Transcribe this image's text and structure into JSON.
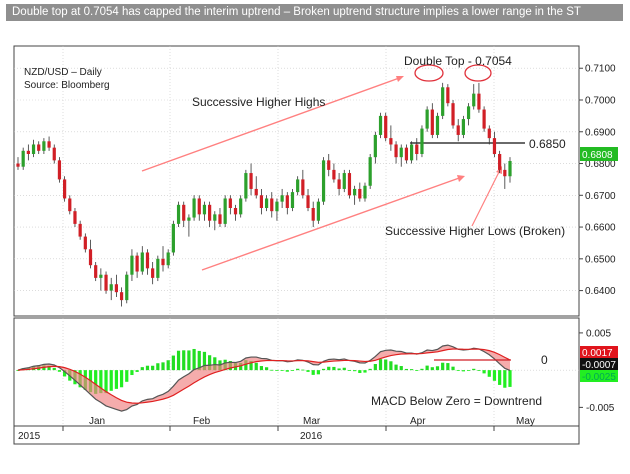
{
  "title": "Double top at 0.7054 has capped the interim uptrend – Broken uptrend structure implies a lower range in the ST",
  "legend": {
    "instrument": "NZD/USD – Daily",
    "source": "Source: Bloomberg"
  },
  "colors": {
    "up": "#2ca02c",
    "down": "#d11f26",
    "trendline": "#ff8080",
    "macd_line": "#555555",
    "signal_line": "#e02020",
    "hist_pos": "#22dd22",
    "hist_neg": "#22ee22",
    "fill": "#f08080",
    "price_tag": "#22bb22",
    "macd_tag": "#e0141c",
    "signal_tag": "#111111"
  },
  "chart_data": [
    {
      "type": "candlestick",
      "title": "",
      "y_ticks": [
        "0.6400",
        "0.6500",
        "0.6600",
        "0.6700",
        "0.6800",
        "0.6900",
        "0.7000",
        "0.7100"
      ],
      "ylim": [
        0.632,
        0.717
      ],
      "x_labels": [
        "Jan",
        "Feb",
        "Mar",
        "Apr",
        "May"
      ],
      "year_labels": [
        "2015",
        "2016"
      ],
      "last_price": "0.6808",
      "candles": [
        [
          0.68,
          0.682,
          0.678,
          0.679
        ],
        [
          0.679,
          0.685,
          0.678,
          0.684
        ],
        [
          0.684,
          0.686,
          0.681,
          0.683
        ],
        [
          0.683,
          0.6875,
          0.682,
          0.686
        ],
        [
          0.686,
          0.687,
          0.683,
          0.684
        ],
        [
          0.684,
          0.688,
          0.683,
          0.687
        ],
        [
          0.687,
          0.6885,
          0.684,
          0.685
        ],
        [
          0.685,
          0.686,
          0.68,
          0.681
        ],
        [
          0.681,
          0.682,
          0.674,
          0.675
        ],
        [
          0.675,
          0.676,
          0.668,
          0.669
        ],
        [
          0.669,
          0.67,
          0.664,
          0.665
        ],
        [
          0.665,
          0.666,
          0.66,
          0.661
        ],
        [
          0.661,
          0.662,
          0.656,
          0.657
        ],
        [
          0.657,
          0.658,
          0.652,
          0.653
        ],
        [
          0.653,
          0.656,
          0.647,
          0.648
        ],
        [
          0.648,
          0.649,
          0.643,
          0.644
        ],
        [
          0.644,
          0.647,
          0.64,
          0.645
        ],
        [
          0.645,
          0.646,
          0.639,
          0.64
        ],
        [
          0.64,
          0.644,
          0.637,
          0.642
        ],
        [
          0.642,
          0.645,
          0.638,
          0.6395
        ],
        [
          0.6395,
          0.641,
          0.635,
          0.637
        ],
        [
          0.637,
          0.646,
          0.636,
          0.645
        ],
        [
          0.645,
          0.653,
          0.643,
          0.651
        ],
        [
          0.651,
          0.652,
          0.644,
          0.646
        ],
        [
          0.646,
          0.654,
          0.645,
          0.652
        ],
        [
          0.652,
          0.653,
          0.645,
          0.647
        ],
        [
          0.647,
          0.649,
          0.642,
          0.644
        ],
        [
          0.644,
          0.651,
          0.643,
          0.65
        ],
        [
          0.65,
          0.654,
          0.646,
          0.648
        ],
        [
          0.648,
          0.653,
          0.647,
          0.652
        ],
        [
          0.652,
          0.662,
          0.651,
          0.661
        ],
        [
          0.661,
          0.668,
          0.66,
          0.667
        ],
        [
          0.667,
          0.668,
          0.66,
          0.662
        ],
        [
          0.662,
          0.664,
          0.657,
          0.663
        ],
        [
          0.663,
          0.67,
          0.662,
          0.669
        ],
        [
          0.669,
          0.67,
          0.662,
          0.664
        ],
        [
          0.664,
          0.668,
          0.662,
          0.667
        ],
        [
          0.667,
          0.668,
          0.66,
          0.662
        ],
        [
          0.662,
          0.665,
          0.659,
          0.664
        ],
        [
          0.664,
          0.666,
          0.66,
          0.661
        ],
        [
          0.661,
          0.67,
          0.66,
          0.669
        ],
        [
          0.669,
          0.67,
          0.664,
          0.666
        ],
        [
          0.666,
          0.667,
          0.662,
          0.664
        ],
        [
          0.664,
          0.67,
          0.663,
          0.669
        ],
        [
          0.669,
          0.678,
          0.668,
          0.677
        ],
        [
          0.677,
          0.68,
          0.67,
          0.672
        ],
        [
          0.672,
          0.676,
          0.669,
          0.67
        ],
        [
          0.67,
          0.672,
          0.664,
          0.666
        ],
        [
          0.666,
          0.67,
          0.665,
          0.669
        ],
        [
          0.669,
          0.671,
          0.663,
          0.665
        ],
        [
          0.665,
          0.669,
          0.662,
          0.668
        ],
        [
          0.668,
          0.672,
          0.666,
          0.67
        ],
        [
          0.67,
          0.671,
          0.664,
          0.666
        ],
        [
          0.666,
          0.672,
          0.665,
          0.671
        ],
        [
          0.671,
          0.676,
          0.67,
          0.675
        ],
        [
          0.675,
          0.678,
          0.669,
          0.67
        ],
        [
          0.67,
          0.672,
          0.665,
          0.666
        ],
        [
          0.666,
          0.668,
          0.66,
          0.662
        ],
        [
          0.662,
          0.669,
          0.661,
          0.668
        ],
        [
          0.668,
          0.682,
          0.667,
          0.681
        ],
        [
          0.681,
          0.683,
          0.676,
          0.678
        ],
        [
          0.678,
          0.68,
          0.674,
          0.675
        ],
        [
          0.675,
          0.677,
          0.67,
          0.672
        ],
        [
          0.672,
          0.678,
          0.671,
          0.677
        ],
        [
          0.677,
          0.678,
          0.669,
          0.67
        ],
        [
          0.67,
          0.673,
          0.667,
          0.672
        ],
        [
          0.672,
          0.674,
          0.668,
          0.669
        ],
        [
          0.669,
          0.674,
          0.668,
          0.673
        ],
        [
          0.673,
          0.683,
          0.672,
          0.682
        ],
        [
          0.682,
          0.69,
          0.68,
          0.689
        ],
        [
          0.689,
          0.696,
          0.688,
          0.695
        ],
        [
          0.695,
          0.696,
          0.687,
          0.688
        ],
        [
          0.688,
          0.692,
          0.684,
          0.686
        ],
        [
          0.686,
          0.687,
          0.68,
          0.682
        ],
        [
          0.682,
          0.686,
          0.679,
          0.685
        ],
        [
          0.685,
          0.686,
          0.68,
          0.681
        ],
        [
          0.681,
          0.687,
          0.68,
          0.686
        ],
        [
          0.686,
          0.688,
          0.681,
          0.683
        ],
        [
          0.683,
          0.692,
          0.682,
          0.691
        ],
        [
          0.691,
          0.698,
          0.69,
          0.697
        ],
        [
          0.697,
          0.699,
          0.688,
          0.689
        ],
        [
          0.689,
          0.696,
          0.688,
          0.695
        ],
        [
          0.695,
          0.7054,
          0.694,
          0.704
        ],
        [
          0.704,
          0.705,
          0.698,
          0.699
        ],
        [
          0.699,
          0.7,
          0.691,
          0.692
        ],
        [
          0.692,
          0.694,
          0.687,
          0.689
        ],
        [
          0.689,
          0.695,
          0.688,
          0.694
        ],
        [
          0.694,
          0.699,
          0.692,
          0.698
        ],
        [
          0.698,
          0.705,
          0.697,
          0.702
        ],
        [
          0.702,
          0.7054,
          0.696,
          0.697
        ],
        [
          0.697,
          0.698,
          0.69,
          0.691
        ],
        [
          0.691,
          0.692,
          0.686,
          0.688
        ],
        [
          0.688,
          0.69,
          0.682,
          0.683
        ],
        [
          0.683,
          0.684,
          0.677,
          0.678
        ],
        [
          0.678,
          0.68,
          0.672,
          0.676
        ],
        [
          0.676,
          0.682,
          0.674,
          0.6808
        ]
      ],
      "annotations": {
        "double_top": "Double Top - 0.7054",
        "neckline": "0.6850",
        "higher_highs": "Successive Higher Highs",
        "higher_lows": "Successive Higher Lows (Broken)"
      }
    },
    {
      "type": "line",
      "title": "",
      "y_ticks": [
        "0.005",
        "-0.005"
      ],
      "ylim": [
        -0.0075,
        0.007
      ],
      "zero_label": "0",
      "macd_value": "0.0017",
      "hist_value": "-0.0007",
      "signal_value": "-0.0025",
      "annotation": "MACD Below Zero = Downtrend"
    }
  ]
}
